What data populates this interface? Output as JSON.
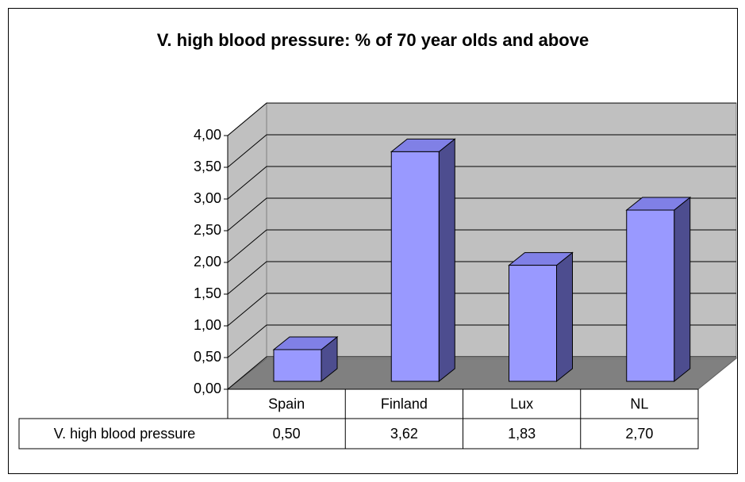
{
  "chart_data": {
    "type": "bar3d",
    "title": "V. high blood pressure: % of 70 year olds and above",
    "categories": [
      "Spain",
      "Finland",
      "Lux",
      "NL"
    ],
    "series": [
      {
        "name": "V. high blood pressure",
        "color": "#9999ff",
        "side_color": "#4d4d8f",
        "top_color": "#8080e6",
        "values": [
          0.5,
          3.62,
          1.83,
          2.7
        ],
        "value_labels": [
          "0,50",
          "3,62",
          "1,83",
          "2,70"
        ]
      }
    ],
    "ylim": [
      0,
      4
    ],
    "yticks": [
      {
        "value": 0,
        "label": "0,00"
      },
      {
        "value": 0.5,
        "label": "0,50"
      },
      {
        "value": 1,
        "label": "1,00"
      },
      {
        "value": 1.5,
        "label": "1,50"
      },
      {
        "value": 2,
        "label": "2,00"
      },
      {
        "value": 2.5,
        "label": "2,50"
      },
      {
        "value": 3,
        "label": "3,00"
      },
      {
        "value": 3.5,
        "label": "3,50"
      },
      {
        "value": 4,
        "label": "4,00"
      }
    ],
    "grid": true,
    "data_table": true
  }
}
